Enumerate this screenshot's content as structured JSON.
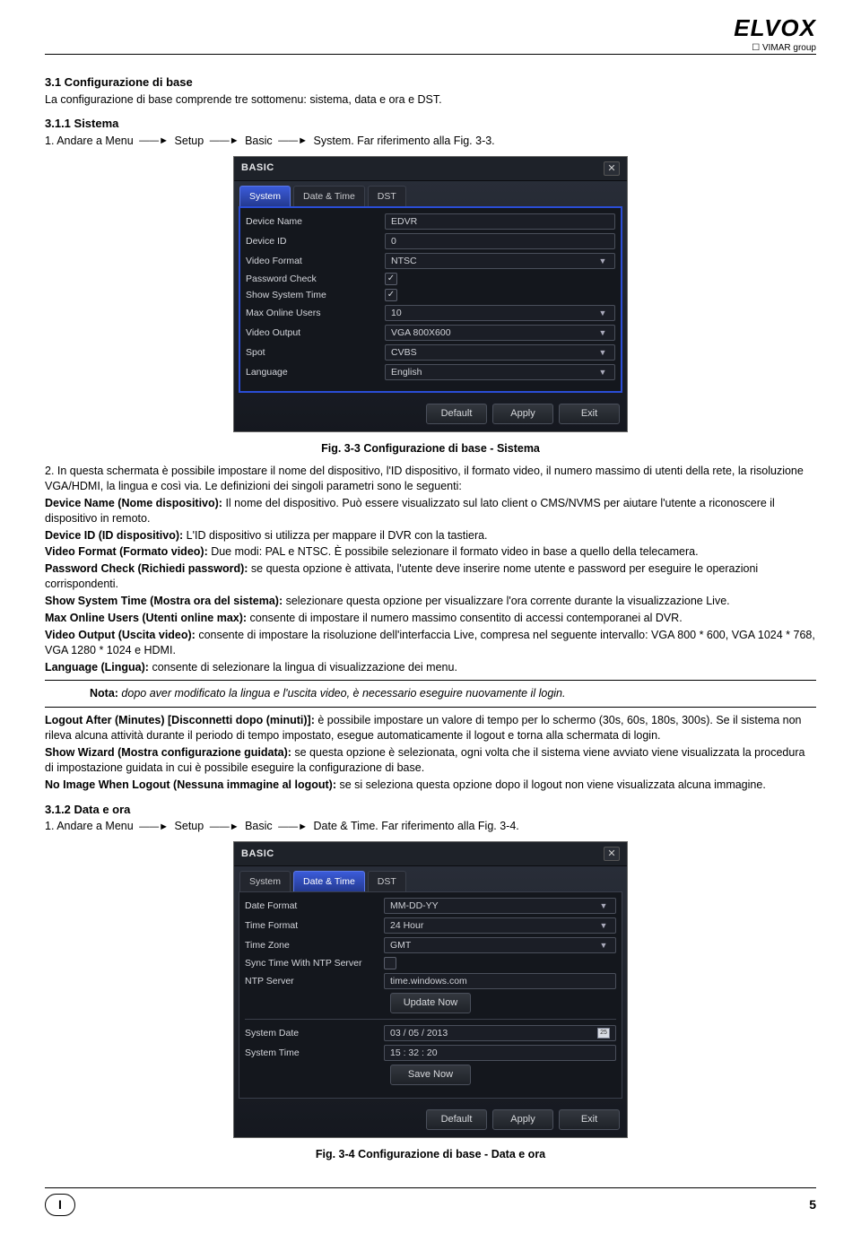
{
  "logo": {
    "brand": "ELVOX",
    "group": "VIMAR group"
  },
  "section": {
    "h1": "3.1 Configurazione di base",
    "intro": "La configurazione di base comprende tre sottomenu: sistema, data e ora e DST.",
    "h2a": "3.1.1 Sistema",
    "nav1_prefix": "1. Andare a Menu",
    "nav1_steps": [
      "Setup",
      "Basic",
      "System. Far riferimento alla Fig. 3-3."
    ],
    "fig33_caption": "Fig. 3-3 Configurazione di base - Sistema",
    "p2_intro": "2. In questa schermata è possibile impostare il nome del dispositivo, l'ID dispositivo, il formato video, il numero massimo di utenti della rete, la risoluzione VGA/HDMI, la lingua e così via. Le definizioni dei singoli parametri sono le seguenti:",
    "defs": [
      {
        "b": "Device Name (Nome dispositivo):",
        "t": " Il nome del dispositivo. Può essere visualizzato sul lato client o CMS/NVMS per aiutare l'utente a riconoscere il dispositivo in remoto."
      },
      {
        "b": "Device ID (ID dispositivo):",
        "t": " L'ID dispositivo si utilizza per mappare il DVR con la tastiera."
      },
      {
        "b": "Video Format (Formato video):",
        "t": " Due modi: PAL e NTSC. È possibile selezionare il formato video in base a quello della telecamera."
      },
      {
        "b": "Password Check (Richiedi password):",
        "t": " se questa opzione è attivata, l'utente deve inserire nome utente e password per eseguire le operazioni corrispondenti."
      },
      {
        "b": "Show System Time (Mostra ora del sistema):",
        "t": " selezionare questa opzione per visualizzare l'ora corrente durante la visualizzazione Live."
      },
      {
        "b": "Max Online Users (Utenti online max):",
        "t": " consente di impostare il numero massimo consentito di accessi contemporanei al DVR."
      },
      {
        "b": "Video Output (Uscita video):",
        "t": " consente di impostare la risoluzione dell'interfaccia Live, compresa nel seguente intervallo: VGA 800 * 600, VGA 1024 * 768, VGA 1280 * 1024 e HDMI."
      },
      {
        "b": "Language (Lingua):",
        "t": " consente di selezionare la lingua di visualizzazione dei menu."
      }
    ],
    "note_b": "Nota:",
    "note_i": " dopo aver modificato la lingua e l'uscita video, è necessario eseguire nuovamente il login.",
    "defs2": [
      {
        "b": "Logout After (Minutes) [Disconnetti dopo (minuti)]:",
        "t": " è possibile impostare un valore di tempo per lo schermo (30s, 60s, 180s, 300s). Se il sistema non rileva alcuna attività durante il periodo di tempo impostato, esegue automaticamente il logout e torna alla schermata di login."
      },
      {
        "b": "Show Wizard (Mostra configurazione guidata):",
        "t": " se questa opzione è selezionata, ogni volta che il sistema viene avviato viene visualizzata la procedura di impostazione guidata in cui è possibile eseguire la configurazione di base."
      },
      {
        "b": "No Image When Logout (Nessuna immagine al logout):",
        "t": " se si seleziona questa opzione dopo il logout non viene visualizzata alcuna immagine."
      }
    ],
    "h2b": "3.1.2 Data e ora",
    "nav2_prefix": "1. Andare a Menu",
    "nav2_steps": [
      "Setup",
      "Basic",
      "Date & Time. Far riferimento alla Fig. 3-4."
    ],
    "fig34_caption": "Fig. 3-4 Configurazione di base - Data e ora"
  },
  "dvr1": {
    "title": "BASIC",
    "tabs": [
      "System",
      "Date & Time",
      "DST"
    ],
    "active_tab": 0,
    "rows": {
      "device_name": {
        "label": "Device Name",
        "value": "EDVR"
      },
      "device_id": {
        "label": "Device ID",
        "value": "0"
      },
      "video_format": {
        "label": "Video Format",
        "value": "NTSC"
      },
      "password_check": {
        "label": "Password Check",
        "checked": true
      },
      "show_system_time": {
        "label": "Show System Time",
        "checked": true
      },
      "max_online": {
        "label": "Max Online Users",
        "value": "10"
      },
      "video_output": {
        "label": "Video Output",
        "value": "VGA 800X600"
      },
      "spot": {
        "label": "Spot",
        "value": "CVBS"
      },
      "language": {
        "label": "Language",
        "value": "English"
      }
    },
    "buttons": {
      "default": "Default",
      "apply": "Apply",
      "exit": "Exit"
    }
  },
  "dvr2": {
    "title": "BASIC",
    "tabs": [
      "System",
      "Date & Time",
      "DST"
    ],
    "active_tab": 1,
    "rows": {
      "date_format": {
        "label": "Date Format",
        "value": "MM-DD-YY"
      },
      "time_format": {
        "label": "Time Format",
        "value": "24 Hour"
      },
      "time_zone": {
        "label": "Time Zone",
        "value": "GMT"
      },
      "sync_ntp": {
        "label": "Sync Time With NTP Server",
        "checked": false
      },
      "ntp_server": {
        "label": "NTP Server",
        "value": "time.windows.com"
      },
      "update_now": "Update Now",
      "system_date": {
        "label": "System Date",
        "value": "03 / 05 / 2013"
      },
      "system_time": {
        "label": "System Time",
        "value": "15  :  32  :  20"
      },
      "save_now": "Save Now"
    },
    "buttons": {
      "default": "Default",
      "apply": "Apply",
      "exit": "Exit"
    }
  },
  "footer": {
    "lang": "I",
    "page": "5"
  },
  "colors": {
    "dvr_bg": "#14171d",
    "dvr_border_active": "#2a4dd6",
    "tab_active": "#3b5bd9"
  }
}
